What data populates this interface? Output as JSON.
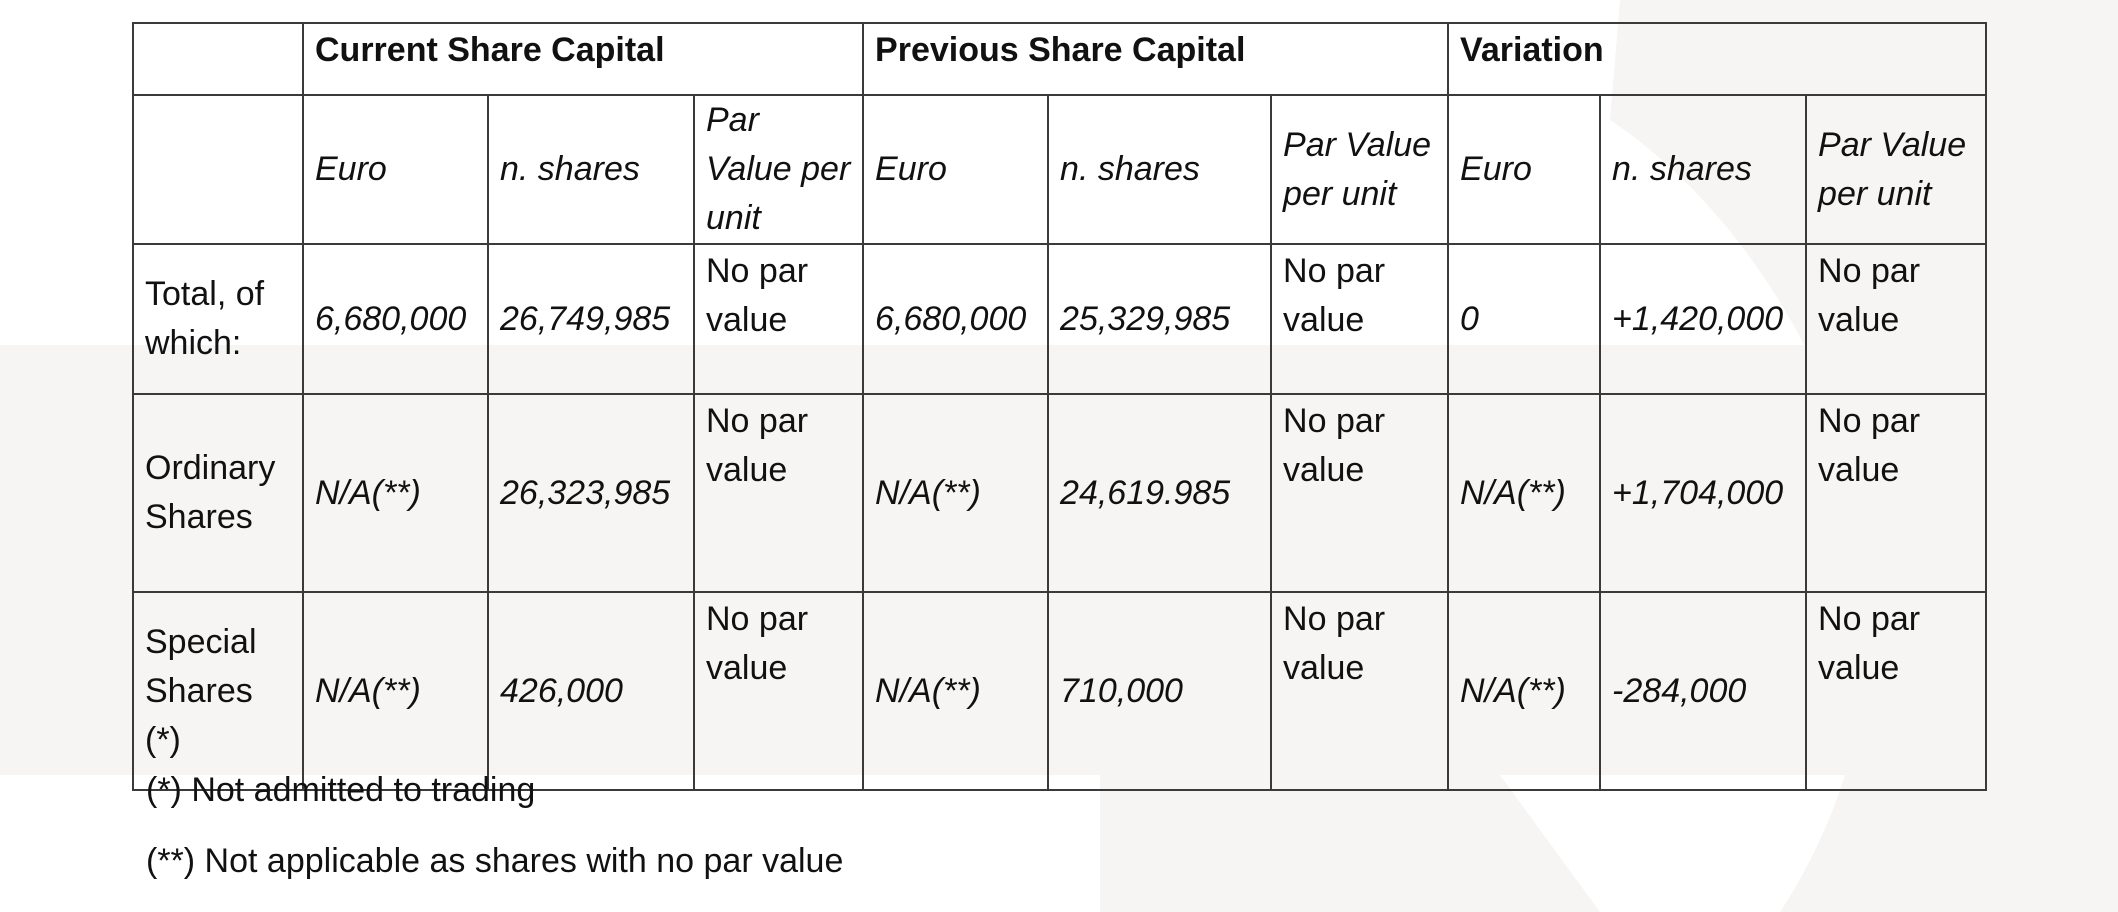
{
  "table": {
    "groups": [
      {
        "label": "Current Share Capital"
      },
      {
        "label": "Previous Share Capital"
      },
      {
        "label": "Variation"
      }
    ],
    "sub_headers": [
      "Euro",
      "n. shares",
      "Par Value per unit",
      "Euro",
      "n. shares",
      "Par Value per unit",
      "Euro",
      "n. shares",
      "Par Value per unit"
    ],
    "rows": [
      {
        "label": "Total, of which:",
        "cells": [
          "6,680,000",
          "26,749,985",
          "No par value",
          "6,680,000",
          "25,329,985",
          "No par value",
          "0",
          "+1,420,000",
          "No par value"
        ]
      },
      {
        "label": "Ordinary Shares",
        "cells": [
          "N/A(**)",
          "26,323,985",
          "No par value",
          "N/A(**)",
          "24,619.985",
          "No par value",
          "N/A(**)",
          "+1,704,000",
          "No par value"
        ]
      },
      {
        "label": "Special Shares (*)",
        "cells": [
          "N/A(**)",
          "426,000",
          "No par value",
          "N/A(**)",
          "710,000",
          "No par value",
          "N/A(**)",
          "-284,000",
          "No par value"
        ]
      }
    ]
  },
  "footnotes": {
    "not_admitted": "(*) Not admitted to trading",
    "not_applicable": "(**) Not applicable as shares with no par value"
  },
  "colors": {
    "background": "#ffffff",
    "watermark": "#f6f5f3",
    "border": "#3a3a3a",
    "text": "#111111"
  }
}
